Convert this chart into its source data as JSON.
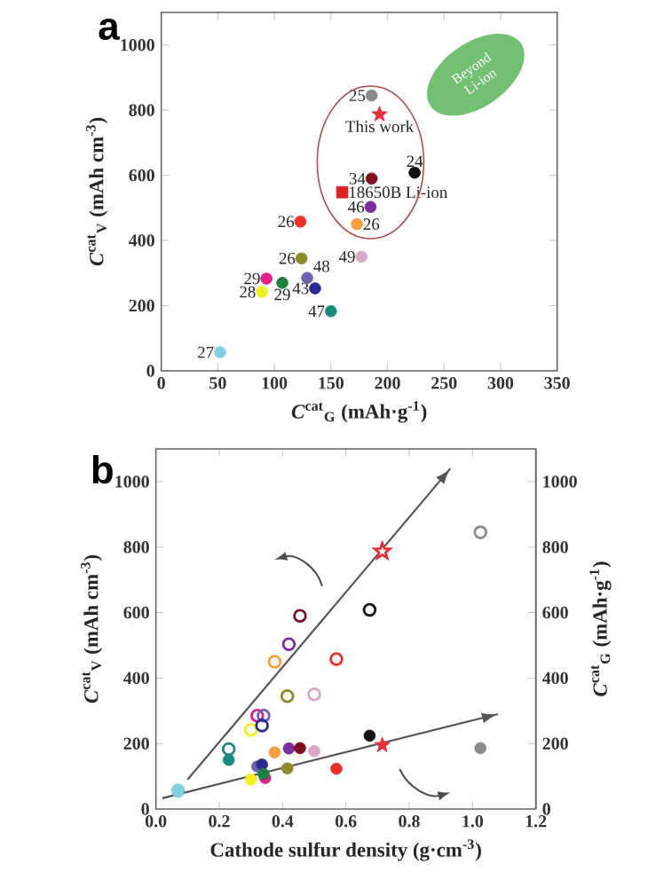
{
  "chart_data": [
    {
      "type": "scatter",
      "xlabel": "*C*$^{cat}$$_{G}$ (mAh·g$^{-1}$)",
      "ylabel": "*C*$^{cat}$$_{V}$ (mAh cm$^{-3}$)",
      "xlim": [
        0,
        350
      ],
      "ylim": [
        0,
        1100
      ],
      "xticks": [
        0,
        50,
        100,
        150,
        200,
        250,
        300,
        350
      ],
      "yticks": [
        0,
        200,
        400,
        600,
        800,
        1000
      ],
      "annotations": [
        "a",
        "Beyond Li-ion",
        {
          "text": "25",
          "x": 186,
          "y": 845
        },
        {
          "text": "This work",
          "x": 193,
          "y": 787
        },
        {
          "text": "24",
          "x": 224,
          "y": 608
        },
        {
          "text": "34",
          "x": 186,
          "y": 590
        },
        {
          "text": "18650B Li-ion",
          "x": 160,
          "y": 548
        },
        {
          "text": "46",
          "x": 185,
          "y": 503
        },
        {
          "text": "26",
          "x": 173,
          "y": 450
        },
        {
          "text": "26",
          "x": 123,
          "y": 458
        },
        {
          "text": "26",
          "x": 124,
          "y": 345
        },
        {
          "text": "49",
          "x": 177,
          "y": 350
        },
        {
          "text": "48",
          "x": 129,
          "y": 285
        },
        {
          "text": "29",
          "x": 93,
          "y": 283
        },
        {
          "text": "29",
          "x": 107,
          "y": 270
        },
        {
          "text": "43",
          "x": 136,
          "y": 253
        },
        {
          "text": "28",
          "x": 89,
          "y": 242
        },
        {
          "text": "47",
          "x": 150,
          "y": 183
        },
        {
          "text": "27",
          "x": 52,
          "y": 57
        }
      ],
      "series": [
        {
          "marker": "circle",
          "x": [
            186,
            224,
            186,
            185,
            173,
            123,
            124,
            177,
            129,
            93,
            107,
            136,
            89,
            150,
            52
          ],
          "values": [
            845,
            608,
            590,
            503,
            450,
            458,
            345,
            350,
            285,
            283,
            270,
            253,
            242,
            183,
            57
          ],
          "colors": [
            "#8a8a8a",
            "#111111",
            "#7a1020",
            "#7b2d9e",
            "#f4a040",
            "#e8332a",
            "#8b8b2a",
            "#d8a8c8",
            "#7060b0",
            "#e0208a",
            "#1e8040",
            "#2a2a90",
            "#f0f020",
            "#1a8a80",
            "#80d0e0"
          ]
        },
        {
          "marker": "star",
          "x": [
            193
          ],
          "values": [
            787
          ],
          "color": "#e0303a"
        },
        {
          "marker": "square",
          "x": [
            160
          ],
          "values": [
            548
          ],
          "color": "#e02020"
        }
      ]
    },
    {
      "type": "scatter",
      "xlabel": "Cathode sulfur density (g·cm$^{-3}$)",
      "ylabel": "*C*$^{cat}$$_{V}$ (mAh cm$^{-3}$)",
      "y2label": "*C*$^{cat}$$_{G}$ (mAh·g$^{-1}$)",
      "xlim": [
        0,
        1.2
      ],
      "ylim": [
        0,
        1100
      ],
      "y2lim": [
        0,
        1100
      ],
      "xticks": [
        {
          "value": 0,
          "label": "0.0"
        },
        0.2,
        0.4,
        0.6,
        0.8,
        {
          "value": 1,
          "label": "1.0"
        },
        1.2
      ],
      "yticks": [
        0,
        200,
        400,
        600,
        800,
        1000
      ],
      "y2ticks": [
        0,
        200,
        400,
        600,
        800,
        1000
      ],
      "annotations": [
        "b"
      ],
      "series": [
        {
          "marker": "circle",
          "axis": "y",
          "x": [
            0.07,
            0.23,
            0.3,
            0.32,
            0.34,
            0.335,
            0.375,
            0.42,
            0.455,
            0.415,
            0.5,
            0.57,
            0.675,
            1.025
          ],
          "values": [
            57,
            183,
            242,
            285,
            285,
            255,
            450,
            503,
            590,
            345,
            350,
            458,
            608,
            845
          ],
          "colors": [
            "#80d0e0",
            "#1a8a80",
            "#f0f020",
            "#e0208a",
            "#7060b0",
            "#2a2a90",
            "#f4a040",
            "#7b2d9e",
            "#7a1020",
            "#8b8b2a",
            "#d8a8c8",
            "#e8332a",
            "#111111",
            "#8a8a8a"
          ]
        },
        {
          "marker": "star",
          "axis": "y",
          "x": [
            0.715
          ],
          "values": [
            787
          ],
          "color": "#e0303a"
        },
        {
          "type": "line",
          "axis": "y",
          "x": [
            0.1,
            0.93
          ],
          "values": [
            90,
            1040
          ],
          "color": "#555555"
        },
        {
          "marker": "circle",
          "axis": "y2",
          "x": [
            0.07,
            0.23,
            0.3,
            0.345,
            0.32,
            0.335,
            0.34,
            0.375,
            0.42,
            0.455,
            0.415,
            0.5,
            0.57,
            0.675,
            1.025
          ],
          "values": [
            52,
            150,
            90,
            95,
            130,
            136,
            107,
            173,
            185,
            186,
            124,
            177,
            123,
            224,
            186
          ],
          "colors": [
            "#80d0e0",
            "#1a8a80",
            "#f0f020",
            "#e0208a",
            "#7060b0",
            "#2a2a90",
            "#1e8040",
            "#f4a040",
            "#7b2d9e",
            "#7a1020",
            "#8b8b2a",
            "#d8a8c8",
            "#e8332a",
            "#111111",
            "#8a8a8a"
          ]
        },
        {
          "marker": "star",
          "axis": "y2",
          "x": [
            0.715
          ],
          "values": [
            195
          ],
          "color": "#e0303a"
        },
        {
          "type": "line",
          "axis": "y2",
          "x": [
            0.02,
            1.08
          ],
          "values": [
            33,
            290
          ],
          "color": "#555555"
        }
      ]
    }
  ]
}
